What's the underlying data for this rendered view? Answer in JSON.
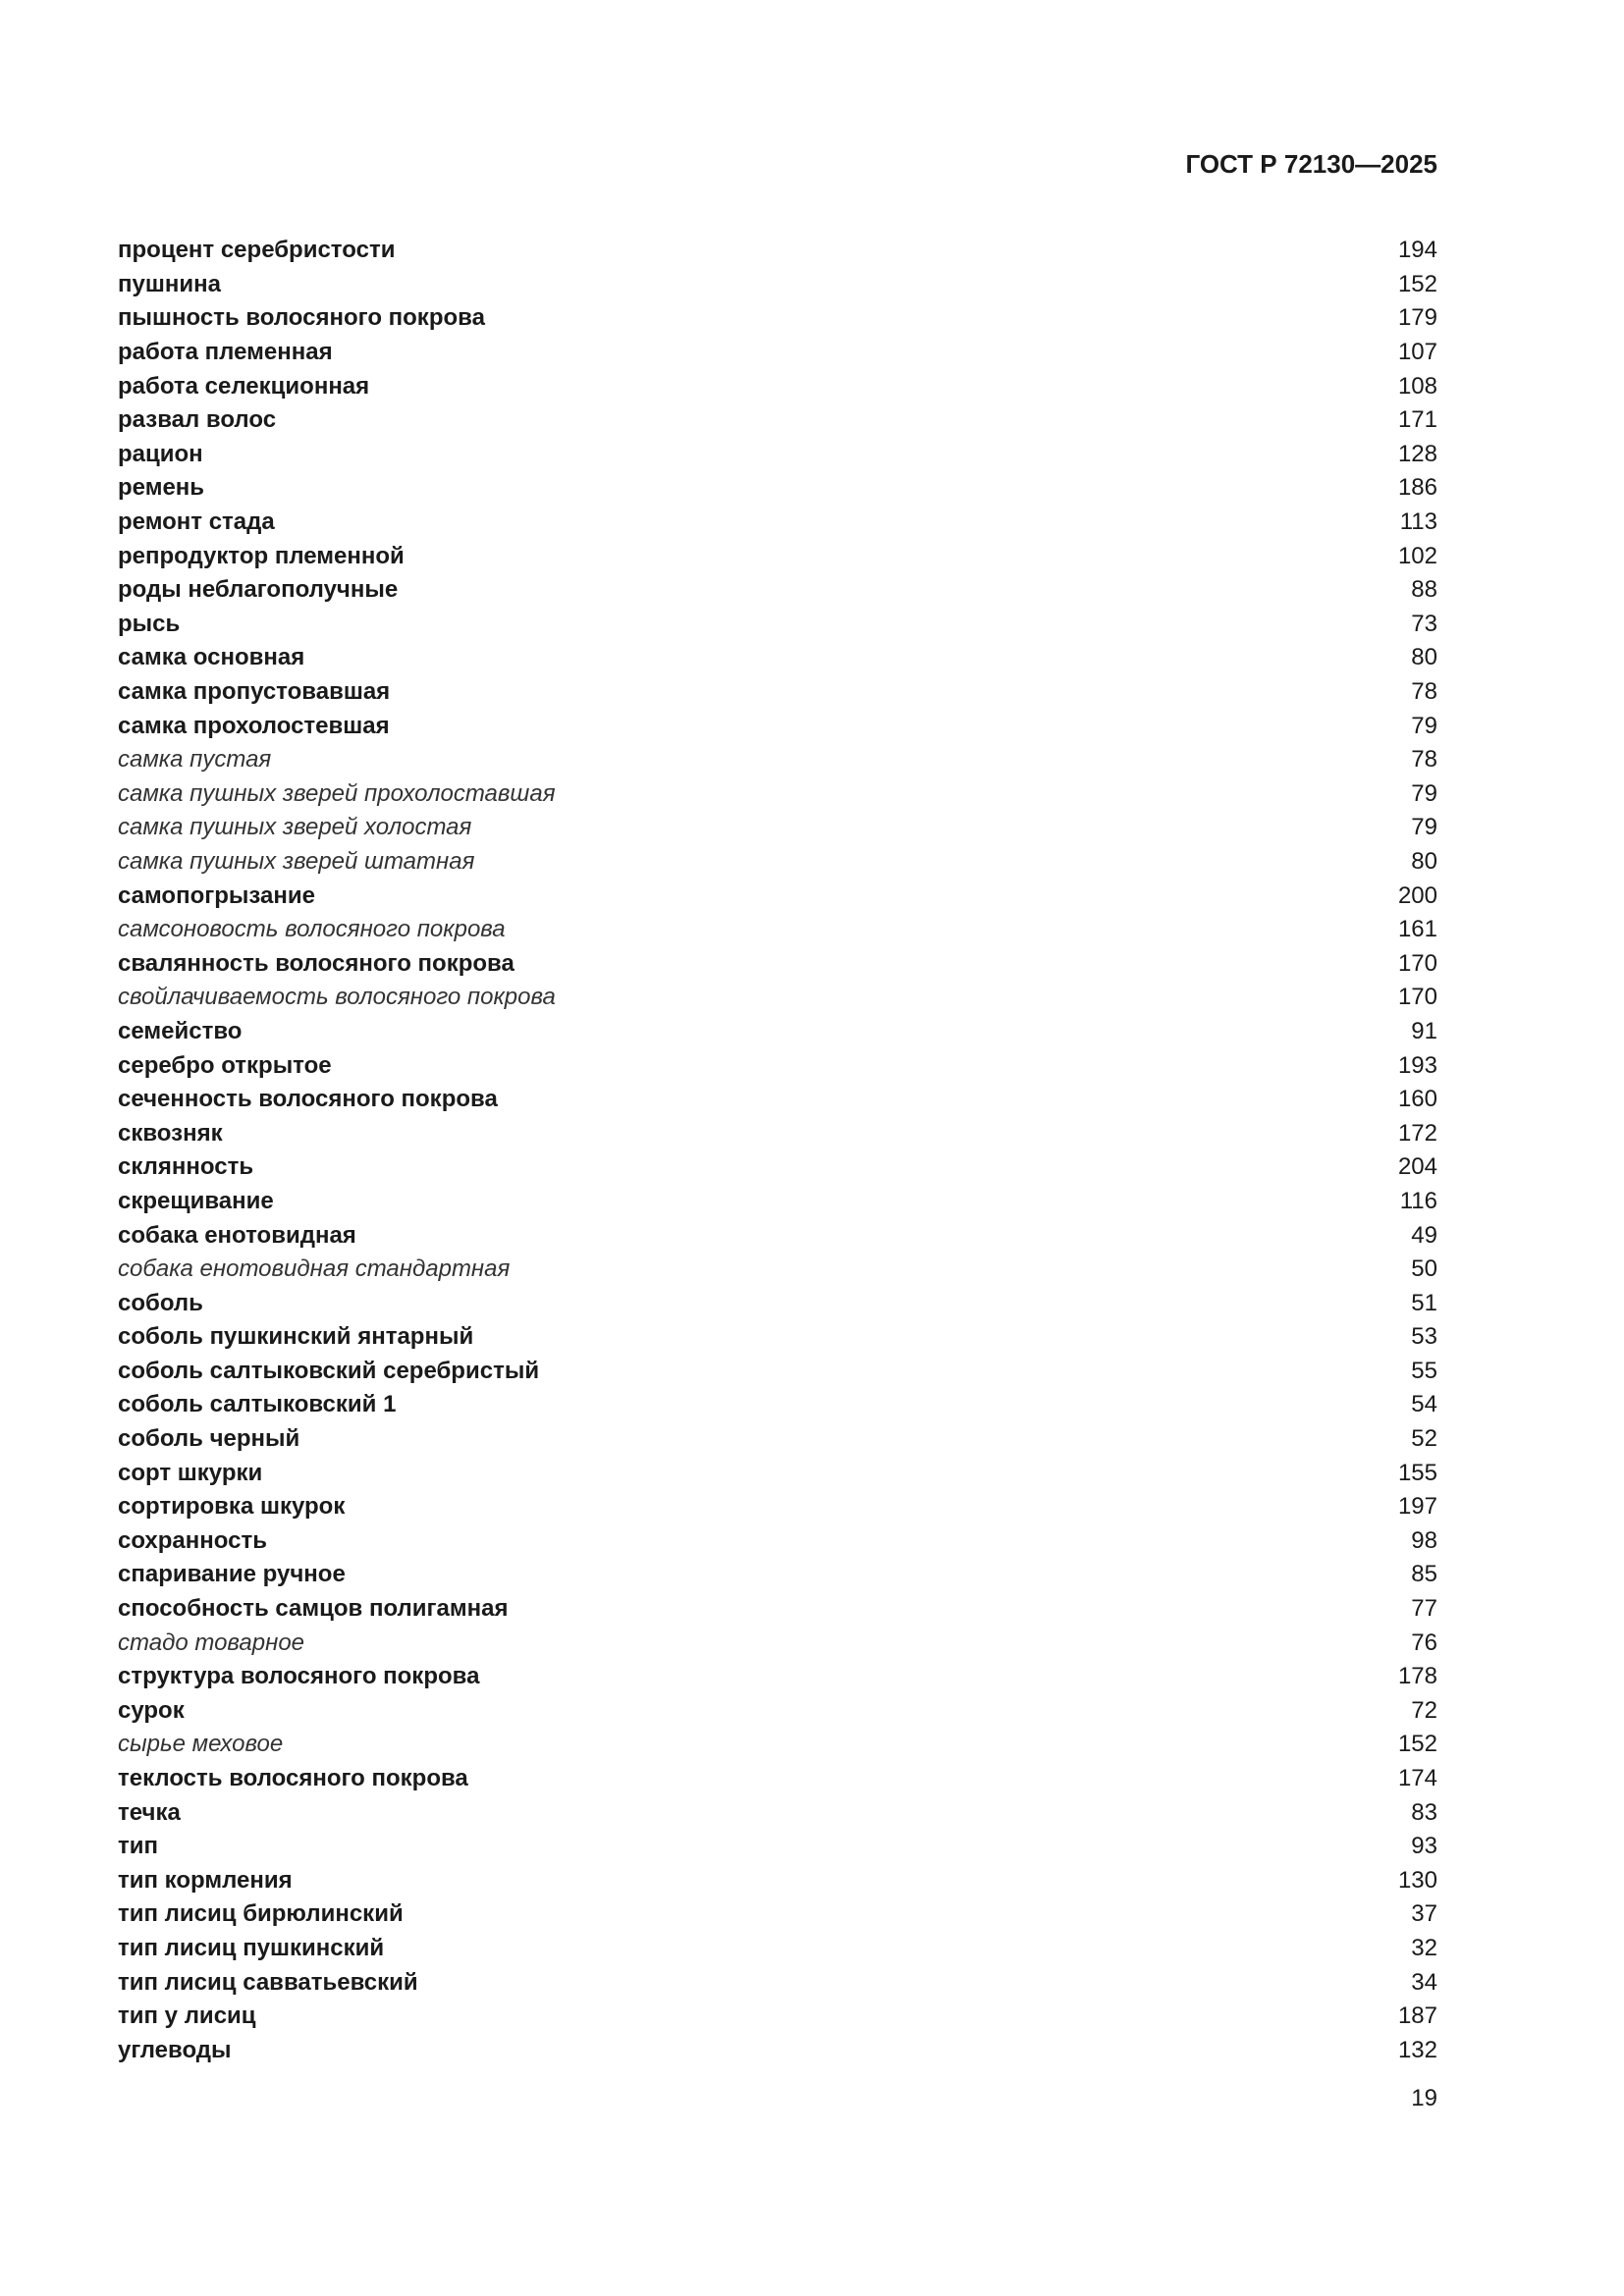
{
  "header": {
    "title": "ГОСТ Р 72130—2025"
  },
  "index": [
    {
      "term": "процент серебристости",
      "page": "194",
      "italic": false
    },
    {
      "term": "пушнина",
      "page": "152",
      "italic": false
    },
    {
      "term": "пышность волосяного покрова",
      "page": "179",
      "italic": false
    },
    {
      "term": "работа племенная",
      "page": "107",
      "italic": false
    },
    {
      "term": "работа селекционная",
      "page": "108",
      "italic": false
    },
    {
      "term": "развал волос",
      "page": "171",
      "italic": false
    },
    {
      "term": "рацион",
      "page": "128",
      "italic": false
    },
    {
      "term": "ремень",
      "page": "186",
      "italic": false
    },
    {
      "term": "ремонт стада",
      "page": "113",
      "italic": false
    },
    {
      "term": "репродуктор племенной",
      "page": "102",
      "italic": false
    },
    {
      "term": "роды неблагополучные",
      "page": "88",
      "italic": false
    },
    {
      "term": "рысь",
      "page": "73",
      "italic": false
    },
    {
      "term": "самка основная",
      "page": "80",
      "italic": false
    },
    {
      "term": "самка пропустовавшая",
      "page": "78",
      "italic": false
    },
    {
      "term": "самка прохолостевшая",
      "page": "79",
      "italic": false
    },
    {
      "term": "самка пустая",
      "page": "78",
      "italic": true
    },
    {
      "term": "самка пушных зверей прохолоставшая",
      "page": "79",
      "italic": true
    },
    {
      "term": "самка пушных зверей холостая",
      "page": "79",
      "italic": true
    },
    {
      "term": "самка пушных зверей штатная",
      "page": "80",
      "italic": true
    },
    {
      "term": "самопогрызание",
      "page": "200",
      "italic": false
    },
    {
      "term": "самсоновость волосяного покрова",
      "page": "161",
      "italic": true
    },
    {
      "term": "свалянность волосяного покрова",
      "page": "170",
      "italic": false
    },
    {
      "term": "свойлачиваемость волосяного покрова",
      "page": "170",
      "italic": true
    },
    {
      "term": "семейство",
      "page": "91",
      "italic": false
    },
    {
      "term": "серебро открытое",
      "page": "193",
      "italic": false
    },
    {
      "term": "сеченность волосяного покрова",
      "page": "160",
      "italic": false
    },
    {
      "term": "сквозняк",
      "page": "172",
      "italic": false
    },
    {
      "term": "склянность",
      "page": "204",
      "italic": false
    },
    {
      "term": "скрещивание",
      "page": "116",
      "italic": false
    },
    {
      "term": "собака енотовидная",
      "page": "49",
      "italic": false
    },
    {
      "term": "собака енотовидная стандартная",
      "page": "50",
      "italic": true
    },
    {
      "term": "соболь",
      "page": "51",
      "italic": false
    },
    {
      "term": "соболь пушкинский янтарный",
      "page": "53",
      "italic": false
    },
    {
      "term": "соболь салтыковский серебристый",
      "page": "55",
      "italic": false
    },
    {
      "term": "соболь салтыковский 1",
      "page": "54",
      "italic": false
    },
    {
      "term": "соболь черный",
      "page": "52",
      "italic": false
    },
    {
      "term": "сорт шкурки",
      "page": "155",
      "italic": false
    },
    {
      "term": "сортировка шкурок",
      "page": "197",
      "italic": false
    },
    {
      "term": "сохранность",
      "page": "98",
      "italic": false
    },
    {
      "term": "спаривание ручное",
      "page": "85",
      "italic": false
    },
    {
      "term": "способность самцов полигамная",
      "page": "77",
      "italic": false
    },
    {
      "term": "стадо товарное",
      "page": "76",
      "italic": true
    },
    {
      "term": "структура волосяного покрова",
      "page": "178",
      "italic": false
    },
    {
      "term": "сурок",
      "page": "72",
      "italic": false
    },
    {
      "term": "сырье меховое",
      "page": "152",
      "italic": true
    },
    {
      "term": "теклость волосяного покрова",
      "page": "174",
      "italic": false
    },
    {
      "term": "течка",
      "page": "83",
      "italic": false
    },
    {
      "term": "тип",
      "page": "93",
      "italic": false
    },
    {
      "term": "тип кормления",
      "page": "130",
      "italic": false
    },
    {
      "term": "тип лисиц бирюлинский",
      "page": "37",
      "italic": false
    },
    {
      "term": "тип лисиц пушкинский",
      "page": "32",
      "italic": false
    },
    {
      "term": "тип лисиц савватьевский",
      "page": "34",
      "italic": false
    },
    {
      "term": "тип у лисиц",
      "page": "187",
      "italic": false
    },
    {
      "term": "углеводы",
      "page": "132",
      "italic": false
    }
  ],
  "footer": {
    "page_number": "19"
  }
}
